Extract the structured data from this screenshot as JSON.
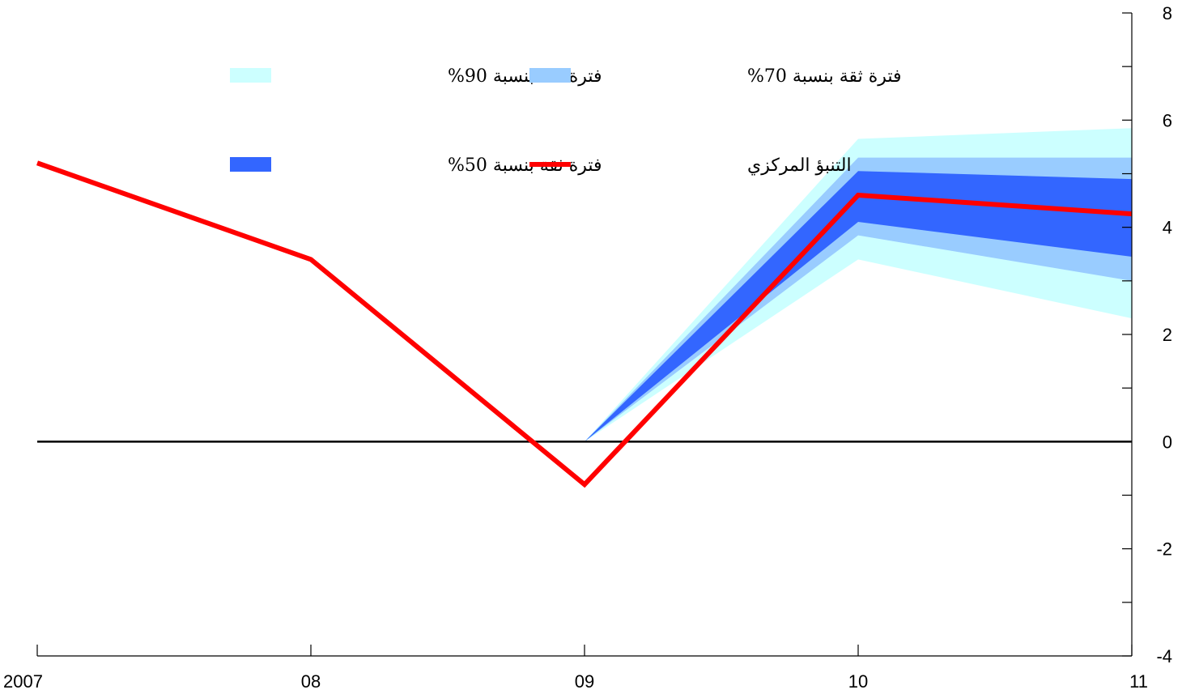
{
  "chart_data": {
    "type": "area",
    "title": "",
    "xlabel": "",
    "ylabel": "",
    "categories": [
      "2007",
      "08",
      "09",
      "10",
      "11"
    ],
    "ylim": [
      -4,
      8
    ],
    "yticks": [
      -4,
      -2,
      0,
      2,
      4,
      6,
      8
    ],
    "zero_line": true,
    "y_axis_side": "right",
    "legend_position": "top-center",
    "central_forecast": {
      "name": "التنبؤ المركزي",
      "color": "#ff0000",
      "values": [
        5.2,
        3.4,
        -0.8,
        4.6,
        4.25
      ]
    },
    "bands": [
      {
        "name": "فترة ثقة بنسبة 90%",
        "color": "#ccffff",
        "start_index": 2,
        "start_value": 0.0,
        "lower": [
          3.4,
          2.3
        ],
        "upper": [
          5.65,
          5.85
        ]
      },
      {
        "name": "فترة ثقة بنسبة 70%",
        "color": "#99ccff",
        "start_index": 2,
        "start_value": 0.0,
        "lower": [
          3.85,
          3.0
        ],
        "upper": [
          5.3,
          5.3
        ]
      },
      {
        "name": "فترة ثقة بنسبة 50%",
        "color": "#3366ff",
        "start_index": 2,
        "start_value": 0.0,
        "lower": [
          4.1,
          3.45
        ],
        "upper": [
          5.05,
          4.9
        ]
      }
    ],
    "legend": [
      {
        "label": "فترة ثقة بنسبة 90%",
        "color": "#ccffff",
        "kind": "patch"
      },
      {
        "label": "فترة ثقة بنسبة 70%",
        "color": "#99ccff",
        "kind": "patch"
      },
      {
        "label": "فترة ثقة بنسبة 50%",
        "color": "#3366ff",
        "kind": "patch"
      },
      {
        "label": "التنبؤ المركزي",
        "color": "#ff0000",
        "kind": "line"
      }
    ]
  }
}
